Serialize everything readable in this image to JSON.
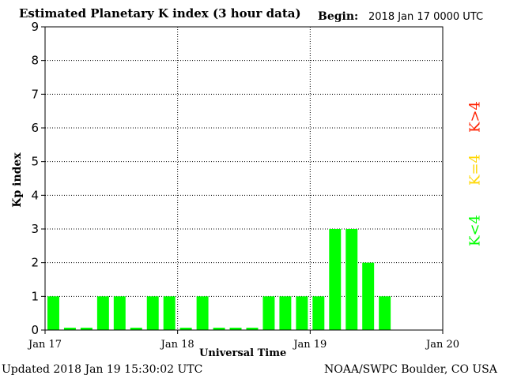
{
  "title": "Estimated Planetary K index (3 hour data)",
  "begin_label": "Begin:",
  "begin_value": "2018 Jan 17 0000 UTC",
  "updated": "Updated 2018 Jan 19 15:30:02 UTC",
  "credit": "NOAA/SWPC Boulder, CO USA",
  "legend": [
    {
      "text": "K<4",
      "color": "#00ff00"
    },
    {
      "text": "K=4",
      "color": "#ffd700"
    },
    {
      "text": "K>4",
      "color": "#ff2000"
    }
  ],
  "chart_data": {
    "type": "bar",
    "title": "Estimated Planetary K index (3 hour data)",
    "xlabel": "Universal Time",
    "ylabel": "Kp index",
    "ylim": [
      0,
      9
    ],
    "yticks": [
      "0",
      "1",
      "2",
      "3",
      "4",
      "5",
      "6",
      "7",
      "8",
      "9"
    ],
    "xticks": [
      "Jan 17",
      "Jan 18",
      "Jan 19",
      "Jan 20"
    ],
    "grid": true,
    "bar_color": "#00ff00",
    "x": [
      "Jan 17 00",
      "Jan 17 03",
      "Jan 17 06",
      "Jan 17 09",
      "Jan 17 12",
      "Jan 17 15",
      "Jan 17 18",
      "Jan 17 21",
      "Jan 18 00",
      "Jan 18 03",
      "Jan 18 06",
      "Jan 18 09",
      "Jan 18 12",
      "Jan 18 15",
      "Jan 18 18",
      "Jan 18 21",
      "Jan 19 00",
      "Jan 19 03",
      "Jan 19 06",
      "Jan 19 09",
      "Jan 19 12"
    ],
    "values": [
      1,
      0,
      0,
      1,
      1,
      0,
      1,
      1,
      0,
      1,
      0,
      0,
      0,
      1,
      1,
      1,
      1,
      3,
      3,
      2,
      1
    ]
  }
}
